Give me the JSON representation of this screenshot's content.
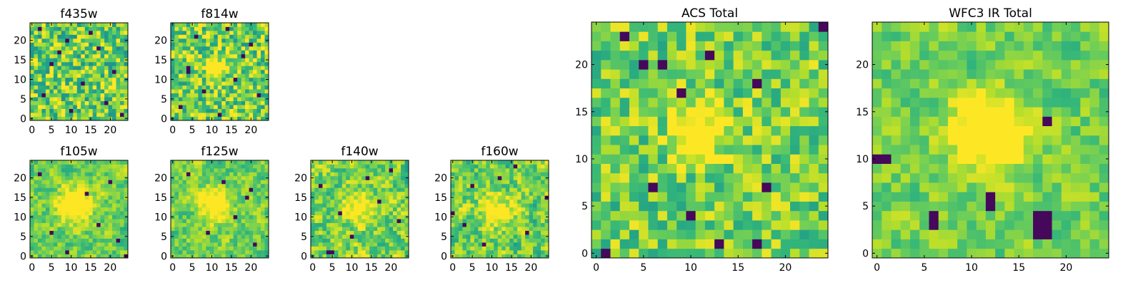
{
  "chart_data": [
    {
      "type": "heatmap",
      "title": "f435w",
      "grid_size": 25,
      "x_ticks": [
        0,
        5,
        10,
        15,
        20
      ],
      "y_ticks": [
        0,
        5,
        10,
        15,
        20
      ],
      "xlim": [
        -0.5,
        24.5
      ],
      "ylim": [
        -0.5,
        24.5
      ],
      "colormap": "viridis",
      "texture": "noise",
      "seed": 11,
      "source_xy": [
        12,
        12
      ],
      "source_strength": 0.0,
      "source_sigma": 3.0,
      "noise_level": 0.55,
      "smoothness": 0,
      "dark_pixels": [
        [
          2,
          23
        ],
        [
          9,
          20
        ],
        [
          17,
          18
        ],
        [
          5,
          14
        ],
        [
          21,
          12
        ],
        [
          13,
          9
        ],
        [
          3,
          6
        ],
        [
          19,
          4
        ],
        [
          10,
          2
        ],
        [
          23,
          1
        ],
        [
          7,
          17
        ],
        [
          15,
          22
        ]
      ]
    },
    {
      "type": "heatmap",
      "title": "f814w",
      "grid_size": 25,
      "x_ticks": [
        0,
        5,
        10,
        15,
        20
      ],
      "y_ticks": [
        0,
        5,
        10,
        15,
        20
      ],
      "xlim": [
        -0.5,
        24.5
      ],
      "ylim": [
        -0.5,
        24.5
      ],
      "colormap": "viridis",
      "texture": "noise",
      "seed": 23,
      "source_xy": [
        11,
        13
      ],
      "source_strength": 0.45,
      "source_sigma": 1.8,
      "noise_level": 0.5,
      "smoothness": 0,
      "dark_pixels": [
        [
          4,
          12
        ],
        [
          4,
          13
        ],
        [
          8,
          7
        ],
        [
          16,
          10
        ],
        [
          20,
          19
        ],
        [
          2,
          3
        ],
        [
          12,
          1
        ],
        [
          22,
          6
        ],
        [
          18,
          16
        ],
        [
          6,
          21
        ],
        [
          14,
          23
        ]
      ]
    },
    {
      "type": "heatmap",
      "title": "f105w",
      "grid_size": 25,
      "x_ticks": [
        0,
        5,
        10,
        15,
        20
      ],
      "y_ticks": [
        0,
        5,
        10,
        15,
        20
      ],
      "xlim": [
        -0.5,
        24.5
      ],
      "ylim": [
        -0.5,
        24.5
      ],
      "colormap": "viridis",
      "texture": "noise",
      "seed": 37,
      "source_xy": [
        11,
        13
      ],
      "source_strength": 0.5,
      "source_sigma": 3.0,
      "noise_level": 0.35,
      "smoothness": 1,
      "dark_pixels": [
        [
          2,
          21
        ],
        [
          17,
          8
        ],
        [
          22,
          4
        ],
        [
          9,
          1
        ],
        [
          20,
          19
        ],
        [
          5,
          6
        ],
        [
          24,
          0
        ],
        [
          14,
          16
        ]
      ]
    },
    {
      "type": "heatmap",
      "title": "f125w",
      "grid_size": 25,
      "x_ticks": [
        0,
        5,
        10,
        15,
        20
      ],
      "y_ticks": [
        0,
        5,
        10,
        15,
        20
      ],
      "xlim": [
        -0.5,
        24.5
      ],
      "ylim": [
        -0.5,
        24.5
      ],
      "colormap": "viridis",
      "texture": "noise",
      "seed": 41,
      "source_xy": [
        11,
        13
      ],
      "source_strength": 0.35,
      "source_sigma": 3.0,
      "noise_level": 0.35,
      "smoothness": 1,
      "dark_pixels": [
        [
          20,
          17
        ],
        [
          19,
          15
        ],
        [
          16,
          10
        ],
        [
          21,
          3
        ],
        [
          4,
          21
        ],
        [
          9,
          6
        ],
        [
          13,
          19
        ]
      ]
    },
    {
      "type": "heatmap",
      "title": "f140w",
      "grid_size": 25,
      "x_ticks": [
        0,
        5,
        10,
        15,
        20
      ],
      "y_ticks": [
        0,
        5,
        10,
        15,
        20
      ],
      "xlim": [
        -0.5,
        24.5
      ],
      "ylim": [
        -0.5,
        24.5
      ],
      "colormap": "viridis",
      "texture": "noise",
      "seed": 53,
      "source_xy": [
        12,
        12
      ],
      "source_strength": 0.25,
      "source_sigma": 3.0,
      "noise_level": 0.45,
      "smoothness": 1,
      "dark_pixels": [
        [
          20,
          22
        ],
        [
          4,
          1
        ],
        [
          5,
          1
        ],
        [
          17,
          14
        ],
        [
          10,
          5
        ],
        [
          22,
          9
        ],
        [
          2,
          18
        ],
        [
          14,
          20
        ],
        [
          7,
          11
        ]
      ]
    },
    {
      "type": "heatmap",
      "title": "f160w",
      "grid_size": 25,
      "x_ticks": [
        0,
        5,
        10,
        15,
        20
      ],
      "y_ticks": [
        0,
        5,
        10,
        15,
        20
      ],
      "xlim": [
        -0.5,
        24.5
      ],
      "ylim": [
        -0.5,
        24.5
      ],
      "colormap": "viridis",
      "texture": "noise",
      "seed": 67,
      "source_xy": [
        12,
        12
      ],
      "source_strength": 0.25,
      "source_sigma": 3.0,
      "noise_level": 0.45,
      "smoothness": 1,
      "dark_pixels": [
        [
          5,
          18
        ],
        [
          0,
          11
        ],
        [
          24,
          15
        ],
        [
          12,
          20
        ],
        [
          19,
          6
        ],
        [
          8,
          3
        ],
        [
          16,
          23
        ],
        [
          3,
          8
        ]
      ]
    },
    {
      "type": "heatmap",
      "title": "ACS Total",
      "grid_size": 25,
      "x_ticks": [
        0,
        5,
        10,
        15,
        20
      ],
      "y_ticks": [
        0,
        5,
        10,
        15,
        20
      ],
      "xlim": [
        -0.5,
        24.5
      ],
      "ylim": [
        -0.5,
        24.5
      ],
      "colormap": "viridis",
      "texture": "noise",
      "seed": 79,
      "source_xy": [
        11,
        13
      ],
      "source_strength": 0.4,
      "source_sigma": 2.2,
      "noise_level": 0.4,
      "smoothness": 0,
      "dark_pixels": [
        [
          3,
          23
        ],
        [
          5,
          20
        ],
        [
          7,
          20
        ],
        [
          9,
          17
        ],
        [
          12,
          21
        ],
        [
          17,
          18
        ],
        [
          6,
          7
        ],
        [
          18,
          7
        ],
        [
          10,
          4
        ],
        [
          17,
          1
        ],
        [
          1,
          0
        ],
        [
          13,
          1
        ],
        [
          24,
          24
        ]
      ]
    },
    {
      "type": "heatmap",
      "title": "WFC3 IR Total",
      "grid_size": 25,
      "x_ticks": [
        0,
        5,
        10,
        15,
        20
      ],
      "y_ticks": [
        0,
        5,
        10,
        15,
        20
      ],
      "xlim": [
        -0.5,
        24.5
      ],
      "ylim": [
        -0.5,
        24.5
      ],
      "colormap": "viridis",
      "texture": "noise",
      "seed": 97,
      "source_xy": [
        12,
        13
      ],
      "source_strength": 0.5,
      "source_sigma": 2.8,
      "noise_level": 0.3,
      "smoothness": 1,
      "dark_pixels": [
        [
          6,
          4
        ],
        [
          6,
          3
        ],
        [
          12,
          5
        ],
        [
          12,
          6
        ],
        [
          17,
          4
        ],
        [
          18,
          4
        ],
        [
          17,
          3
        ],
        [
          18,
          3
        ],
        [
          18,
          2
        ],
        [
          17,
          2
        ],
        [
          18,
          14
        ],
        [
          1,
          10
        ],
        [
          0,
          10
        ]
      ]
    }
  ]
}
